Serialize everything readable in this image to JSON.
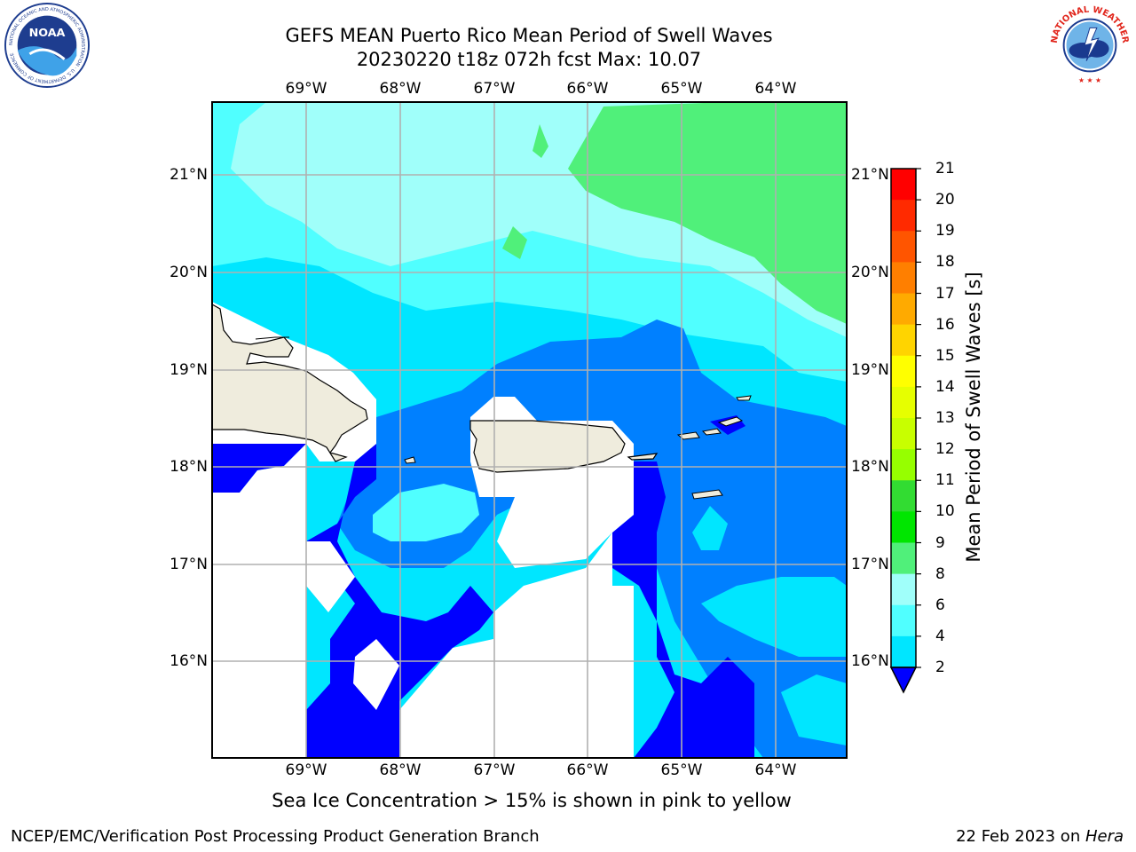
{
  "title": {
    "line1": "GEFS MEAN Puerto Rico Mean Period of Swell Waves",
    "line2": "20230220 t18z 072h fcst   Max: 10.07"
  },
  "logos": {
    "left": {
      "icon": "noaa-logo",
      "text": "NOAA",
      "ring_text": "NATIONAL OCEANIC AND ATMOSPHERIC ADMINISTRATION · U.S. DEPARTMENT OF COMMERCE"
    },
    "right": {
      "icon": "nws-logo",
      "ring_text": "NATIONAL WEATHER SERVICE"
    }
  },
  "map": {
    "lon_labels": [
      "69°W",
      "68°W",
      "67°W",
      "66°W",
      "65°W",
      "64°W"
    ],
    "lat_labels": [
      "21°N",
      "20°N",
      "19°N",
      "18°N",
      "17°N",
      "16°N"
    ],
    "land_color": "#efecdd",
    "grid_color": "#b0b0b0"
  },
  "colorbar": {
    "title": "Mean Period of Swell Waves [s]",
    "ticks": [
      "21",
      "20",
      "19",
      "18",
      "17",
      "16",
      "15",
      "14",
      "13",
      "12",
      "11",
      "10",
      "9",
      "8",
      "6",
      "4",
      "2"
    ],
    "colors": [
      "#ff0000",
      "#ff2a00",
      "#ff5500",
      "#ff7f00",
      "#ffaa00",
      "#ffd400",
      "#ffff00",
      "#e6ff00",
      "#c8ff00",
      "#96ff00",
      "#32dc32",
      "#00e600",
      "#50f07a",
      "#a0fffa",
      "#50ffff",
      "#00e6ff",
      "#0080ff"
    ],
    "extend_color": "#0000ff"
  },
  "ice_note": "Sea Ice Concentration > 15% is shown in pink to yellow",
  "footer": {
    "left": "NCEP/EMC/Verification Post Processing Product Generation Branch",
    "right_prefix": "22 Feb 2023 on ",
    "right_machine": "Hera"
  }
}
